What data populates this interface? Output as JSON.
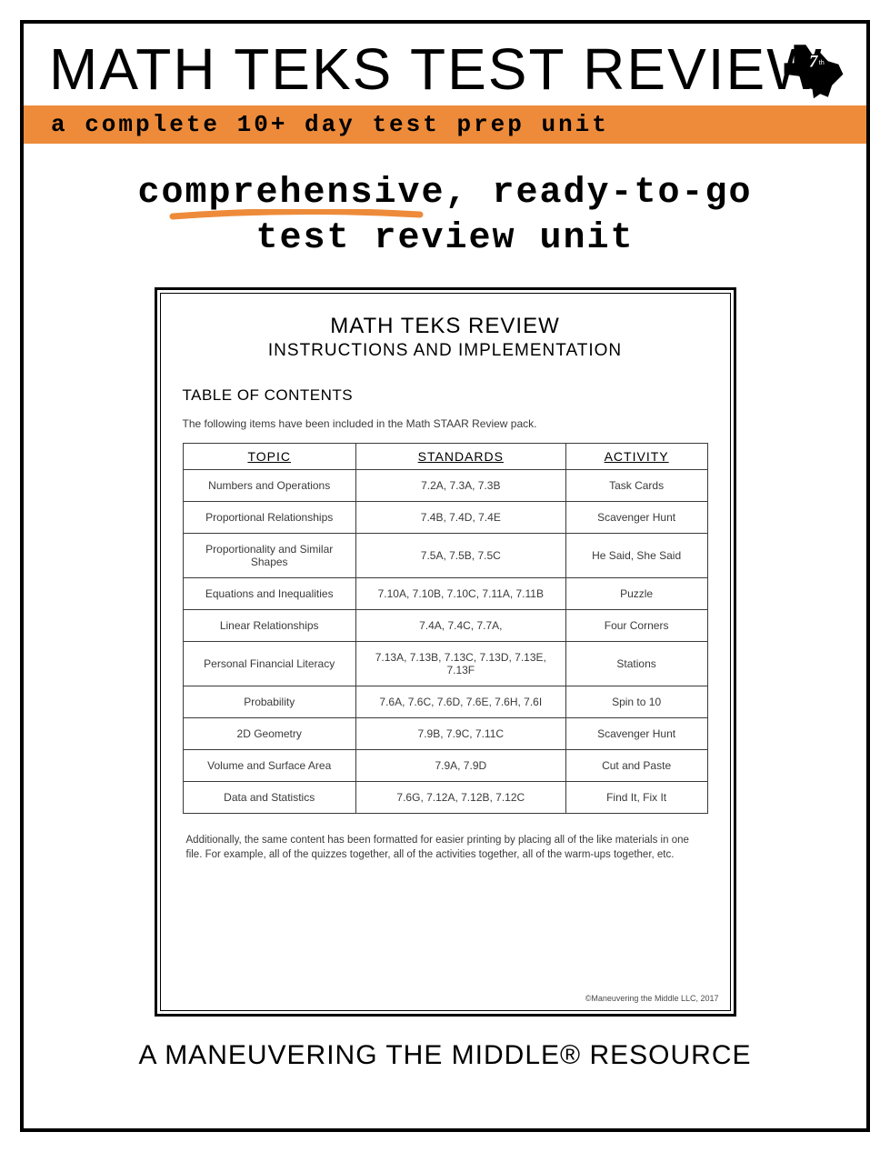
{
  "header": {
    "title": "MATH TEKS TEST REVIEW",
    "subtitle": "a complete 10+ day test prep unit",
    "badge_text": "7th",
    "badge_fill": "#000000",
    "badge_text_color": "#ffffff"
  },
  "tagline": {
    "line1": "comprehensive, ready-to-go",
    "line2": "test review unit",
    "underline_color": "#ed8b3a"
  },
  "subtitle_bar_color": "#ed8b3a",
  "inner_doc": {
    "title": "MATH TEKS REVIEW",
    "subtitle": "INSTRUCTIONS AND IMPLEMENTATION",
    "toc_heading": "TABLE OF CONTENTS",
    "intro": "The following items have been included in the Math STAAR Review pack.",
    "columns": [
      "TOPIC",
      "STANDARDS",
      "ACTIVITY"
    ],
    "rows": [
      [
        "Numbers and Operations",
        "7.2A, 7.3A, 7.3B",
        "Task Cards"
      ],
      [
        "Proportional Relationships",
        "7.4B, 7.4D, 7.4E",
        "Scavenger Hunt"
      ],
      [
        "Proportionality and Similar Shapes",
        "7.5A, 7.5B, 7.5C",
        "He Said, She Said"
      ],
      [
        "Equations and Inequalities",
        "7.10A, 7.10B, 7.10C, 7.11A, 7.11B",
        "Puzzle"
      ],
      [
        "Linear Relationships",
        "7.4A, 7.4C, 7.7A,",
        "Four Corners"
      ],
      [
        "Personal Financial Literacy",
        "7.13A, 7.13B, 7.13C, 7.13D, 7.13E, 7.13F",
        "Stations"
      ],
      [
        "Probability",
        "7.6A, 7.6C, 7.6D, 7.6E, 7.6H, 7.6I",
        "Spin to 10"
      ],
      [
        "2D Geometry",
        "7.9B, 7.9C, 7.11C",
        "Scavenger Hunt"
      ],
      [
        "Volume and Surface Area",
        "7.9A, 7.9D",
        "Cut and Paste"
      ],
      [
        "Data and Statistics",
        "7.6G, 7.12A, 7.12B, 7.12C",
        "Find It, Fix It"
      ]
    ],
    "note": "Additionally, the same content has been formatted for easier printing by placing all of the like materials in one file.  For example, all of the quizzes together, all of the activities together, all of the warm-ups together, etc.",
    "copyright": "©Maneuvering the Middle LLC, 2017"
  },
  "footer": "A MANEUVERING THE MIDDLE® RESOURCE"
}
